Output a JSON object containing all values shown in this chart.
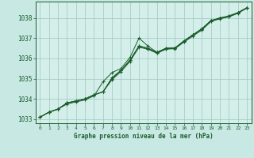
{
  "title": "Graphe pression niveau de la mer (hPa)",
  "background_color": "#c8e8e4",
  "plot_bg_color": "#d4eeea",
  "grid_color": "#9ec8c0",
  "line_color": "#1a5c2a",
  "xlim": [
    -0.5,
    23.5
  ],
  "ylim": [
    1032.8,
    1038.8
  ],
  "yticks": [
    1033,
    1034,
    1035,
    1036,
    1037,
    1038
  ],
  "xtick_labels": [
    "0",
    "1",
    "2",
    "3",
    "4",
    "5",
    "6",
    "7",
    "8",
    "9",
    "10",
    "11",
    "12",
    "13",
    "14",
    "15",
    "16",
    "17",
    "18",
    "19",
    "20",
    "21",
    "22",
    "23"
  ],
  "series": [
    [
      1033.1,
      1033.35,
      1033.5,
      1033.75,
      1033.85,
      1033.95,
      1034.15,
      1034.85,
      1035.3,
      1035.5,
      1036.05,
      1037.0,
      1036.6,
      1036.3,
      1036.5,
      1036.5,
      1036.85,
      1037.15,
      1037.45,
      1037.85,
      1038.0,
      1038.05,
      1038.25,
      1038.5
    ],
    [
      1033.1,
      1033.35,
      1033.5,
      1033.8,
      1033.9,
      1034.0,
      1034.2,
      1034.35,
      1034.95,
      1035.35,
      1035.85,
      1036.55,
      1036.45,
      1036.25,
      1036.45,
      1036.48,
      1036.8,
      1037.1,
      1037.4,
      1037.82,
      1037.95,
      1038.05,
      1038.22,
      1038.48
    ],
    [
      1033.1,
      1033.35,
      1033.5,
      1033.8,
      1033.9,
      1034.0,
      1034.2,
      1034.35,
      1035.0,
      1035.4,
      1035.9,
      1036.6,
      1036.48,
      1036.28,
      1036.48,
      1036.5,
      1036.85,
      1037.15,
      1037.45,
      1037.85,
      1037.97,
      1038.08,
      1038.24,
      1038.49
    ],
    [
      1033.1,
      1033.35,
      1033.5,
      1033.8,
      1033.9,
      1034.0,
      1034.2,
      1034.35,
      1035.05,
      1035.42,
      1035.92,
      1036.62,
      1036.5,
      1036.3,
      1036.5,
      1036.52,
      1036.87,
      1037.17,
      1037.47,
      1037.87,
      1037.99,
      1038.1,
      1038.26,
      1038.5
    ]
  ]
}
